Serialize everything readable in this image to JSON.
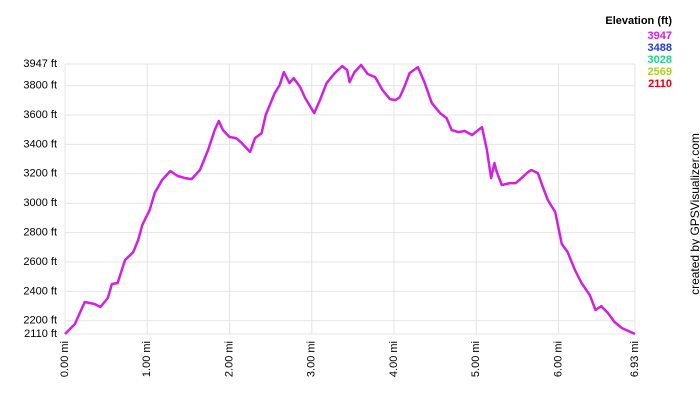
{
  "chart_data": {
    "type": "line",
    "x": [
      0,
      0.12,
      0.24,
      0.36,
      0.43,
      0.52,
      0.57,
      0.64,
      0.73,
      0.83,
      0.89,
      0.94,
      1.03,
      1.09,
      1.18,
      1.28,
      1.37,
      1.46,
      1.54,
      1.64,
      1.74,
      1.82,
      1.87,
      1.92,
      2.0,
      2.08,
      2.15,
      2.25,
      2.31,
      2.39,
      2.44,
      2.55,
      2.61,
      2.66,
      2.73,
      2.78,
      2.86,
      2.92,
      3.03,
      3.1,
      3.18,
      3.28,
      3.37,
      3.43,
      3.46,
      3.52,
      3.6,
      3.68,
      3.77,
      3.86,
      3.95,
      4.02,
      4.07,
      4.13,
      4.19,
      4.29,
      4.37,
      4.46,
      4.56,
      4.64,
      4.7,
      4.78,
      4.86,
      4.95,
      5.01,
      5.07,
      5.13,
      5.18,
      5.22,
      5.25,
      5.31,
      5.41,
      5.48,
      5.55,
      5.63,
      5.67,
      5.75,
      5.8,
      5.87,
      5.96,
      6.04,
      6.11,
      6.2,
      6.28,
      6.38,
      6.45,
      6.52,
      6.6,
      6.68,
      6.77,
      6.93
    ],
    "series": [
      {
        "values": [
          2110,
          2178,
          2328,
          2314,
          2294,
          2355,
          2450,
          2457,
          2613,
          2668,
          2750,
          2852,
          2954,
          3069,
          3158,
          3219,
          3185,
          3171,
          3164,
          3226,
          3362,
          3498,
          3559,
          3498,
          3450,
          3443,
          3409,
          3348,
          3443,
          3477,
          3600,
          3749,
          3804,
          3892,
          3817,
          3851,
          3790,
          3715,
          3613,
          3702,
          3817,
          3885,
          3933,
          3906,
          3824,
          3892,
          3940,
          3879,
          3858,
          3770,
          3708,
          3702,
          3722,
          3797,
          3885,
          3926,
          3824,
          3681,
          3613,
          3579,
          3498,
          3484,
          3491,
          3464,
          3491,
          3518,
          3362,
          3171,
          3273,
          3212,
          3124,
          3137,
          3137,
          3171,
          3212,
          3226,
          3205,
          3124,
          3022,
          2940,
          2722,
          2668,
          2545,
          2457,
          2375,
          2273,
          2300,
          2253,
          2192,
          2151,
          2110
        ]
      }
    ],
    "xlim": [
      0,
      6.93
    ],
    "ylim": [
      2110,
      3947
    ],
    "xticks": [
      {
        "value": 0,
        "label": "0.00 mi"
      },
      {
        "value": 1,
        "label": "1.00 mi"
      },
      {
        "value": 2,
        "label": "2.00 mi"
      },
      {
        "value": 3,
        "label": "3.00 mi"
      },
      {
        "value": 4,
        "label": "4.00 mi"
      },
      {
        "value": 5,
        "label": "5.00 mi"
      },
      {
        "value": 6,
        "label": "6.00 mi"
      },
      {
        "value": 6.93,
        "label": "6.93 mi"
      }
    ],
    "yticks": [
      {
        "value": 2110,
        "label": "2110 ft"
      },
      {
        "value": 2200,
        "label": "2200 ft"
      },
      {
        "value": 2400,
        "label": "2400 ft"
      },
      {
        "value": 2600,
        "label": "2600 ft"
      },
      {
        "value": 2800,
        "label": "2800 ft"
      },
      {
        "value": 3000,
        "label": "3000 ft"
      },
      {
        "value": 3200,
        "label": "3200 ft"
      },
      {
        "value": 3400,
        "label": "3400 ft"
      },
      {
        "value": 3600,
        "label": "3600 ft"
      },
      {
        "value": 3800,
        "label": "3800 ft"
      },
      {
        "value": 3947,
        "label": "3947 ft"
      }
    ],
    "grid": true,
    "legend": {
      "title": "Elevation (ft)",
      "values": [
        3947,
        3488,
        3028,
        2569,
        2110
      ],
      "colors": [
        "#d020e0",
        "#2040d0",
        "#20d090",
        "#a8d020",
        "#e00010"
      ]
    },
    "credit": "created by GPSVisualizer.com"
  }
}
